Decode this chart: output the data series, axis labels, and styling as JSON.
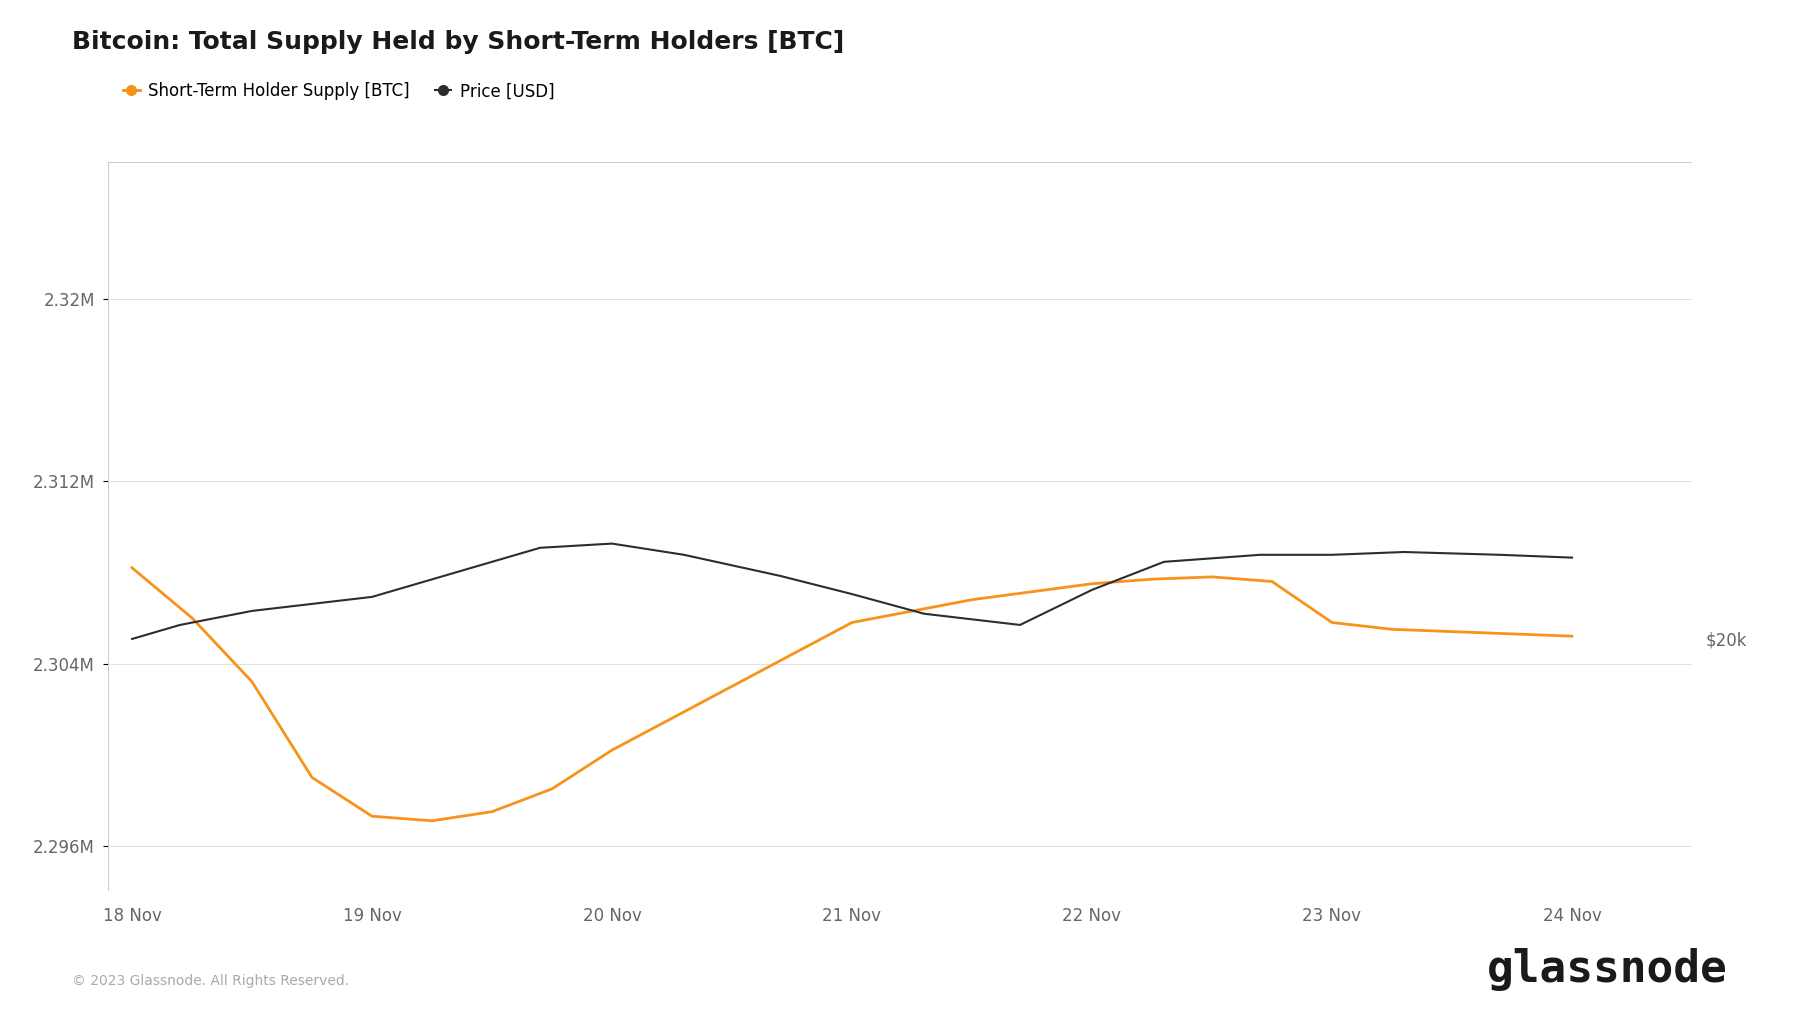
{
  "title": "Bitcoin: Total Supply Held by Short-Term Holders [BTC]",
  "legend_supply": "Short-Term Holder Supply [BTC]",
  "legend_price": "Price [USD]",
  "supply_color": "#F7931A",
  "price_color": "#2d2d2d",
  "background_color": "#ffffff",
  "grid_color": "#e0e0e0",
  "copyright": "© 2023 Glassnode. All Rights Reserved.",
  "watermark": "glassnode",
  "x_ticks": [
    "18 Nov",
    "19 Nov",
    "20 Nov",
    "21 Nov",
    "22 Nov",
    "23 Nov",
    "24 Nov"
  ],
  "x_values": [
    0,
    1,
    2,
    3,
    4,
    5,
    6
  ],
  "supply_x": [
    0.0,
    0.25,
    0.5,
    0.75,
    1.0,
    1.25,
    1.5,
    1.75,
    2.0,
    2.5,
    3.0,
    3.5,
    4.0,
    4.25,
    4.5,
    4.75,
    5.0,
    5.25,
    5.5,
    5.75,
    6.0
  ],
  "supply_y": [
    2308200,
    2306000,
    2303200,
    2299000,
    2297300,
    2297100,
    2297500,
    2298500,
    2300200,
    2303000,
    2305800,
    2306800,
    2307500,
    2307700,
    2307800,
    2307600,
    2305800,
    2305500,
    2305400,
    2305300,
    2305200
  ],
  "price_x": [
    0.0,
    0.2,
    0.5,
    1.0,
    1.3,
    1.7,
    2.0,
    2.3,
    2.7,
    3.0,
    3.3,
    3.7,
    4.0,
    4.3,
    4.7,
    5.0,
    5.3,
    5.7,
    6.0
  ],
  "price_y": [
    20000,
    20010,
    20020,
    20030,
    20045,
    20065,
    20068,
    20060,
    20045,
    20032,
    20018,
    20010,
    20035,
    20055,
    20060,
    20060,
    20062,
    20060,
    20058
  ],
  "ylim_supply": [
    2294000,
    2326000
  ],
  "ylim_price": [
    19820,
    20340
  ],
  "yticks_supply": [
    2296000,
    2304000,
    2312000,
    2320000
  ],
  "ytick_labels_supply": [
    "2.296M",
    "2.304M",
    "2.312M",
    "2.32M"
  ],
  "ytick_price_bottom": 19820,
  "ytick_price_val": 20000,
  "ytick_price_label": "$20k",
  "title_fontsize": 18,
  "tick_fontsize": 12,
  "legend_fontsize": 12
}
